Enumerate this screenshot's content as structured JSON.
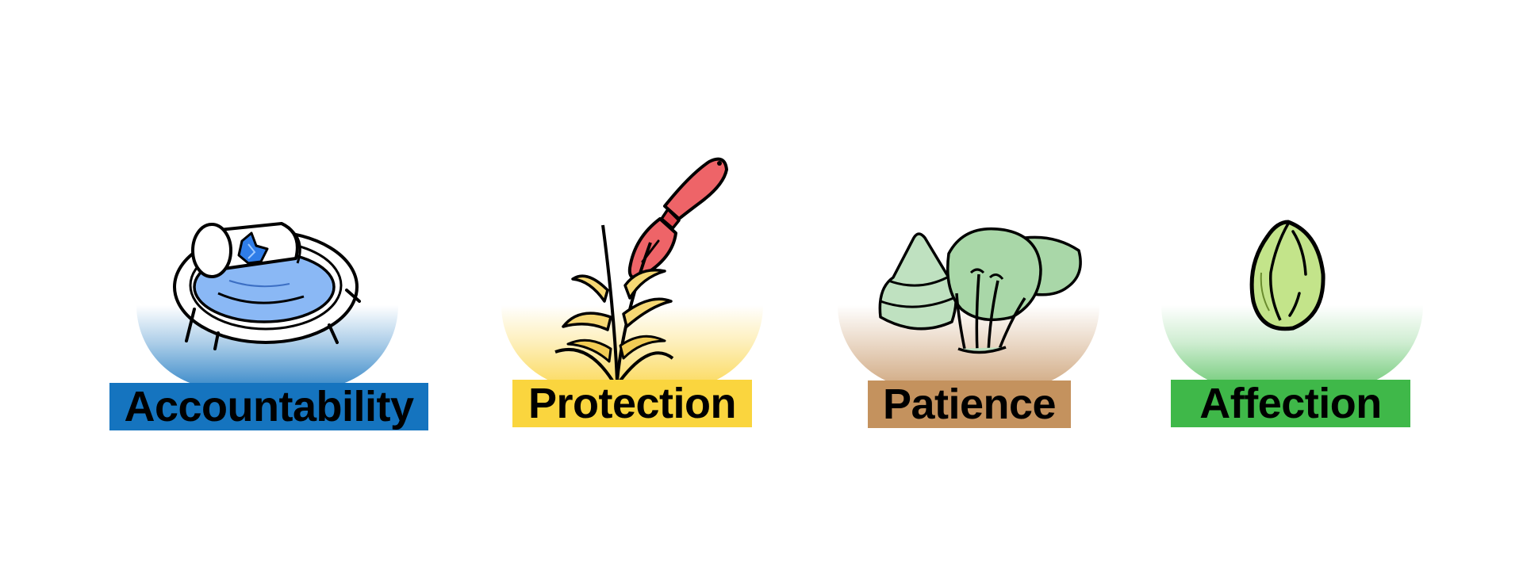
{
  "cards": [
    {
      "label": "Accountability",
      "icon": "bowl-with-cup-icon",
      "color": "#1574BF"
    },
    {
      "label": "Protection",
      "icon": "trowel-and-plant-icon",
      "color": "#FAD53E"
    },
    {
      "label": "Patience",
      "icon": "cabbage-sprouts-icon",
      "color": "#C4925E"
    },
    {
      "label": "Affection",
      "icon": "seed-icon",
      "color": "#3FB849"
    }
  ]
}
